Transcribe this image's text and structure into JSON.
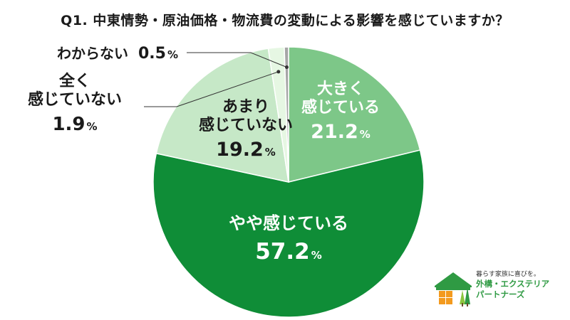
{
  "chart_data": {
    "type": "pie",
    "title": "Q1. 中東情勢・原油価格・物流費の変動による影響を感じていますか？",
    "start": "12 o'clock, clockwise",
    "slices": [
      {
        "label_lines": [
          "大きく",
          "感じている"
        ],
        "value": 21.2,
        "value_text": "21.2",
        "color": "#7dc788",
        "label_placement": "inside"
      },
      {
        "label_lines": [
          "やや感じている"
        ],
        "value": 57.2,
        "value_text": "57.2",
        "color": "#0f8d37",
        "label_placement": "inside"
      },
      {
        "label_lines": [
          "あまり",
          "感じていない"
        ],
        "value": 19.2,
        "value_text": "19.2",
        "color": "#c6e8c7",
        "label_placement": "inside"
      },
      {
        "label_lines": [
          "全く",
          "感じていない"
        ],
        "value": 1.9,
        "value_text": "1.9",
        "color": "#e6f7e3",
        "label_placement": "outside-left-callout"
      },
      {
        "label_lines": [
          "わからない"
        ],
        "value": 0.5,
        "value_text": "0.5",
        "color": "#a6a6a6",
        "label_placement": "outside-top-callout"
      }
    ],
    "percent_symbol": "%"
  },
  "logo": {
    "tagline": "暮らす家族に喜びを。",
    "name_line1": "外構・エクステリア",
    "name_line2": "パートナーズ",
    "accent_color": "#2f9a43",
    "window_color": "#f39a1e"
  }
}
